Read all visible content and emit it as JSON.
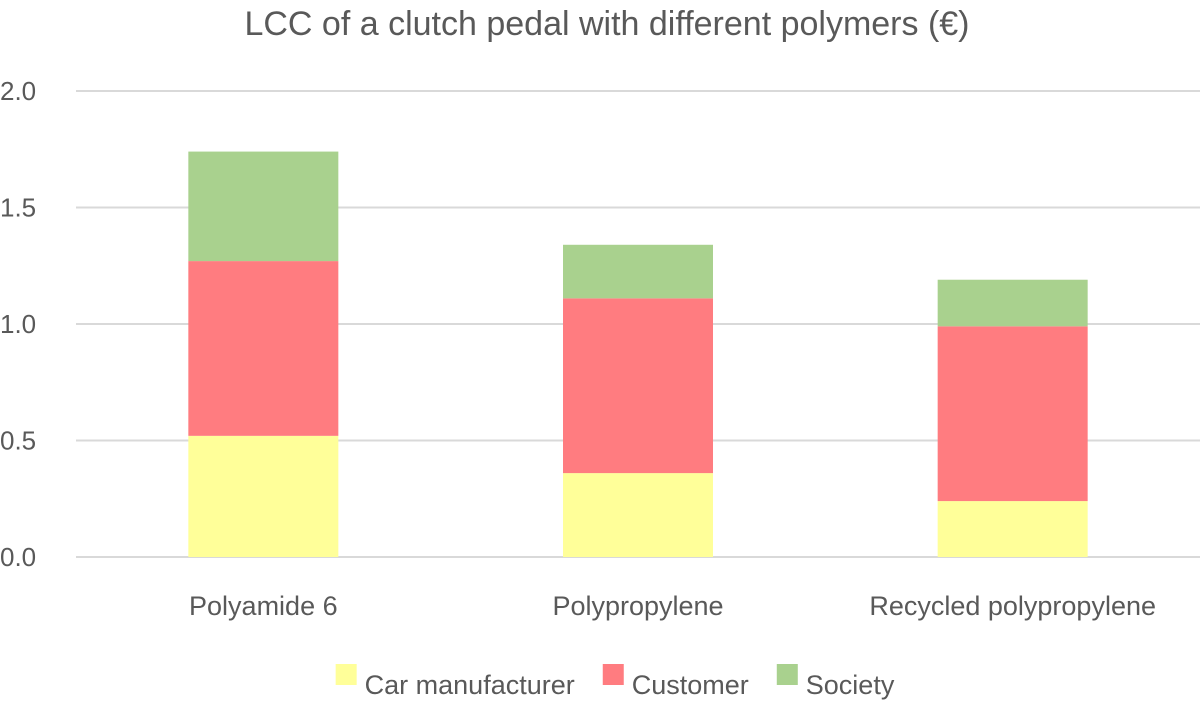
{
  "chart_data": {
    "type": "bar",
    "stacked": true,
    "title": "LCC of a clutch pedal with different polymers (€)",
    "xlabel": "",
    "ylabel": "",
    "categories": [
      "Polyamide 6",
      "Polypropylene",
      "Recycled polypropylene"
    ],
    "series": [
      {
        "name": "Car manufacturer",
        "color": "#ffff99",
        "values": [
          0.52,
          0.36,
          0.24
        ]
      },
      {
        "name": "Customer",
        "color": "#ff7c80",
        "values": [
          0.75,
          0.75,
          0.75
        ]
      },
      {
        "name": "Society",
        "color": "#a9d18e",
        "values": [
          0.47,
          0.23,
          0.2
        ]
      }
    ],
    "ylim": [
      0,
      2.0
    ],
    "yticks": [
      "0.0",
      "0.5",
      "1.0",
      "1.5",
      "2.0"
    ],
    "ytick_values": [
      0,
      0.5,
      1.0,
      1.5,
      2.0
    ],
    "grid": true,
    "legend_position": "bottom"
  }
}
